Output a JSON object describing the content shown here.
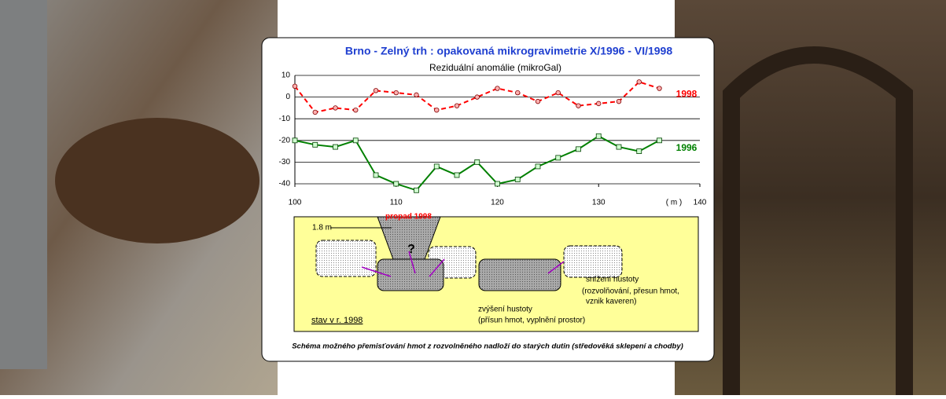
{
  "chart_data": {
    "type": "line",
    "title": "Brno - Zelný trh :  opakovaná mikrogravimetrie X/1996 - VI/1998",
    "subtitle": "Reziduální anomálie (mikroGal)",
    "x_label": "( m )",
    "x": [
      100,
      102,
      104,
      106,
      108,
      110,
      112,
      114,
      116,
      118,
      120,
      122,
      124,
      126,
      128,
      130,
      132,
      134,
      136
    ],
    "series": [
      {
        "name": "1998",
        "color": "#ff0000",
        "values": [
          5,
          -7,
          -5,
          -6,
          3,
          2,
          1,
          -6,
          -4,
          0,
          4,
          2,
          -2,
          2,
          -4,
          -3,
          -2,
          7,
          4
        ]
      },
      {
        "name": "1996",
        "color": "#008000",
        "values": [
          -20,
          -22,
          -23,
          -20,
          -36,
          -40,
          -43,
          -32,
          -36,
          -30,
          -40,
          -38,
          -32,
          -28,
          -24,
          -18,
          -23,
          -25,
          -20
        ]
      }
    ],
    "xlim": [
      100,
      140
    ],
    "xticks": [
      100,
      110,
      120,
      130,
      140
    ],
    "ylim": [
      -40,
      10
    ],
    "yticks": [
      10,
      0,
      -10,
      -20,
      -30,
      -40
    ],
    "grid": true
  },
  "diagram": {
    "sinkhole": "propad 1998",
    "depth": "1.8 m",
    "question": "?",
    "decrease": [
      "snížení hustoty",
      "(rozvolňování, přesun hmot,",
      "vznik kaveren)"
    ],
    "increase": [
      "zvýšení hustoty",
      "(přísun hmot, vyplnění prostor)"
    ],
    "state": "stav v r. 1998",
    "caption": "Schéma možného přemisťování hmot z rozvolněného nadloží do starých dutin (středověká sklepení a chodby)"
  }
}
